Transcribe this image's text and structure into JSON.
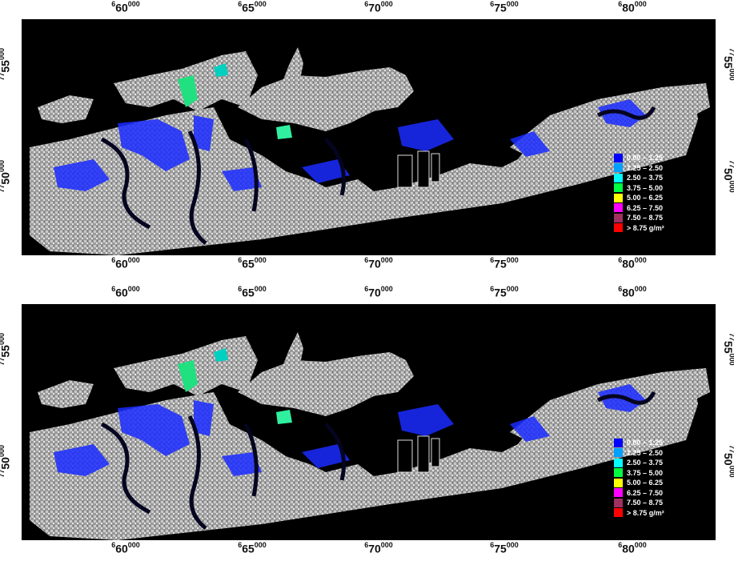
{
  "panels": [
    {
      "x_ticks": [
        {
          "major": "6",
          "minor": "60",
          "sup": "000"
        },
        {
          "major": "6",
          "minor": "65",
          "sup": "000"
        },
        {
          "major": "6",
          "minor": "70",
          "sup": "000"
        },
        {
          "major": "6",
          "minor": "75",
          "sup": "000"
        },
        {
          "major": "6",
          "minor": "80",
          "sup": "000"
        }
      ],
      "y_ticks": [
        {
          "major": "77",
          "minor": "55",
          "sup": "000"
        },
        {
          "major": "77",
          "minor": "50",
          "sup": "000"
        }
      ]
    },
    {
      "x_ticks": [
        {
          "major": "6",
          "minor": "60",
          "sup": "000"
        },
        {
          "major": "6",
          "minor": "65",
          "sup": "000"
        },
        {
          "major": "6",
          "minor": "70",
          "sup": "000"
        },
        {
          "major": "6",
          "minor": "75",
          "sup": "000"
        },
        {
          "major": "6",
          "minor": "80",
          "sup": "000"
        }
      ],
      "y_ticks": [
        {
          "major": "77",
          "minor": "55",
          "sup": "000"
        },
        {
          "major": "77",
          "minor": "50",
          "sup": "000"
        }
      ]
    }
  ],
  "legend": [
    {
      "label": "0.00 – 1.25",
      "color": "#0000ff"
    },
    {
      "label": "1.25 – 2.50",
      "color": "#00a0ff"
    },
    {
      "label": "2.50 – 3.75",
      "color": "#00ffff"
    },
    {
      "label": "3.75 – 5.00",
      "color": "#00ff40"
    },
    {
      "label": "5.00 – 6.25",
      "color": "#ffff00"
    },
    {
      "label": "6.25 – 7.50",
      "color": "#ff00ff"
    },
    {
      "label": "7.50 – 8.75",
      "color": "#a03060"
    },
    {
      "label": "> 8.75 g/m²",
      "color": "#ff0000"
    }
  ]
}
